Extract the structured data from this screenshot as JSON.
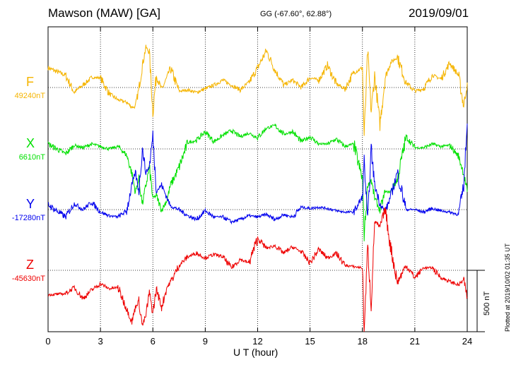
{
  "header": {
    "station": "Mawson (MAW)  [GA]",
    "coords": "GG (-67.60°,  62.88°)",
    "date": "2019/09/01"
  },
  "footer": {
    "xlabel": "U T (hour)",
    "plotted": "Plotted at 2019/10/02 01:35 UT"
  },
  "scale": {
    "label": "500 nT",
    "value_nT": 500
  },
  "chart_data": {
    "type": "line",
    "xlim": [
      0,
      24
    ],
    "xticks": [
      0,
      3,
      6,
      9,
      12,
      15,
      18,
      21,
      24
    ],
    "xlabel": "U T (hour)",
    "grid": true,
    "series": [
      {
        "name": "F",
        "baseline": "49240nT",
        "color": "#f5b400",
        "x": [
          0,
          1,
          1.5,
          2,
          2.5,
          3,
          3.5,
          4,
          4.5,
          4.8,
          5,
          5.2,
          5.4,
          5.6,
          5.8,
          6,
          6.2,
          6.5,
          6.8,
          7,
          7.5,
          8,
          8.5,
          9,
          9.5,
          10,
          10.5,
          11,
          11.5,
          12,
          12.5,
          13,
          13.5,
          14,
          14.5,
          15,
          15.5,
          16,
          16.5,
          17,
          17.5,
          18,
          18.1,
          18.3,
          18.5,
          18.7,
          19,
          19.3,
          19.6,
          20,
          20.5,
          21,
          21.5,
          22,
          22.5,
          23,
          23.5,
          23.8,
          24
        ],
        "y": [
          160,
          100,
          -40,
          20,
          80,
          80,
          -50,
          -100,
          -120,
          -160,
          -160,
          -10,
          180,
          330,
          280,
          -200,
          100,
          -20,
          80,
          160,
          -30,
          -20,
          -40,
          -10,
          20,
          60,
          20,
          -20,
          40,
          160,
          300,
          140,
          20,
          60,
          0,
          80,
          60,
          180,
          30,
          -10,
          120,
          160,
          -400,
          300,
          -200,
          100,
          -300,
          80,
          200,
          250,
          40,
          -30,
          -10,
          100,
          70,
          200,
          100,
          -150,
          40
        ]
      },
      {
        "name": "X",
        "baseline": "6610nT",
        "color": "#00e000",
        "x": [
          0,
          1,
          1.5,
          2,
          2.5,
          3,
          3.5,
          4,
          4.5,
          4.8,
          5,
          5.2,
          5.4,
          5.6,
          5.8,
          6,
          6.2,
          6.5,
          6.8,
          7,
          7.5,
          8,
          8.5,
          9,
          9.5,
          10,
          10.5,
          11,
          11.5,
          12,
          12.5,
          13,
          13.5,
          14,
          14.5,
          15,
          15.5,
          16,
          16.5,
          17,
          17.5,
          18,
          18.1,
          18.3,
          18.5,
          18.7,
          19,
          19.3,
          19.6,
          20,
          20.5,
          21,
          21.5,
          22,
          22.5,
          23,
          23.5,
          23.8,
          24
        ],
        "y": [
          40,
          -40,
          30,
          10,
          40,
          20,
          0,
          20,
          -50,
          -200,
          -350,
          -250,
          -450,
          -300,
          -150,
          -400,
          -380,
          -500,
          -420,
          -300,
          -150,
          50,
          70,
          140,
          60,
          110,
          150,
          100,
          130,
          90,
          170,
          190,
          120,
          140,
          60,
          100,
          40,
          40,
          80,
          20,
          40,
          -250,
          -700,
          -300,
          -250,
          -400,
          -500,
          -350,
          -350,
          -250,
          100,
          10,
          10,
          40,
          20,
          30,
          -60,
          -200,
          -350
        ]
      },
      {
        "name": "Y",
        "baseline": "-17280nT",
        "color": "#0000ee",
        "x": [
          0,
          1,
          1.5,
          2,
          2.5,
          3,
          3.5,
          4,
          4.5,
          4.8,
          5,
          5.2,
          5.4,
          5.6,
          5.8,
          6,
          6.2,
          6.5,
          6.8,
          7,
          7.5,
          8,
          8.5,
          9,
          9.5,
          10,
          10.5,
          11,
          11.5,
          12,
          12.5,
          13,
          13.5,
          14,
          14.5,
          15,
          15.5,
          16,
          16.5,
          17,
          17.5,
          18,
          18.1,
          18.3,
          18.5,
          18.7,
          19,
          19.3,
          19.6,
          20,
          20.5,
          21,
          21.5,
          22,
          22.5,
          23,
          23.5,
          23.8,
          24
        ],
        "y": [
          40,
          -60,
          50,
          0,
          60,
          -20,
          -50,
          -60,
          -10,
          200,
          300,
          150,
          500,
          300,
          350,
          600,
          150,
          200,
          100,
          30,
          0,
          -50,
          -80,
          -10,
          -60,
          -60,
          -100,
          -80,
          -50,
          -60,
          -40,
          -80,
          -40,
          -60,
          20,
          10,
          20,
          10,
          -10,
          -20,
          -20,
          100,
          400,
          -100,
          500,
          200,
          50,
          -20,
          100,
          300,
          0,
          0,
          -20,
          10,
          -10,
          -20,
          -40,
          200,
          700
        ]
      },
      {
        "name": "Z",
        "baseline": "-45630nT",
        "color": "#ee0000",
        "x": [
          0,
          1,
          1.5,
          2,
          2.5,
          3,
          3.5,
          4,
          4.5,
          4.8,
          5,
          5.2,
          5.4,
          5.6,
          5.8,
          6,
          6.2,
          6.5,
          6.8,
          7,
          7.5,
          8,
          8.5,
          9,
          9.5,
          10,
          10.5,
          11,
          11.5,
          12,
          12.5,
          13,
          13.5,
          14,
          14.5,
          15,
          15.5,
          16,
          16.5,
          17,
          17.5,
          18,
          18.1,
          18.3,
          18.5,
          18.7,
          19,
          19.3,
          19.6,
          20,
          20.5,
          21,
          21.5,
          22,
          22.5,
          23,
          23.5,
          23.8,
          24
        ],
        "y": [
          -200,
          -190,
          -140,
          -230,
          -160,
          -110,
          -150,
          -140,
          -310,
          -420,
          -300,
          -250,
          -450,
          -370,
          -180,
          -350,
          -150,
          -300,
          -140,
          -100,
          40,
          110,
          140,
          100,
          130,
          110,
          20,
          90,
          60,
          260,
          180,
          200,
          140,
          190,
          150,
          60,
          170,
          100,
          140,
          40,
          30,
          20,
          -500,
          200,
          -300,
          400,
          350,
          500,
          200,
          -100,
          40,
          -60,
          20,
          20,
          -60,
          -90,
          -120,
          -80,
          -220
        ]
      }
    ]
  }
}
